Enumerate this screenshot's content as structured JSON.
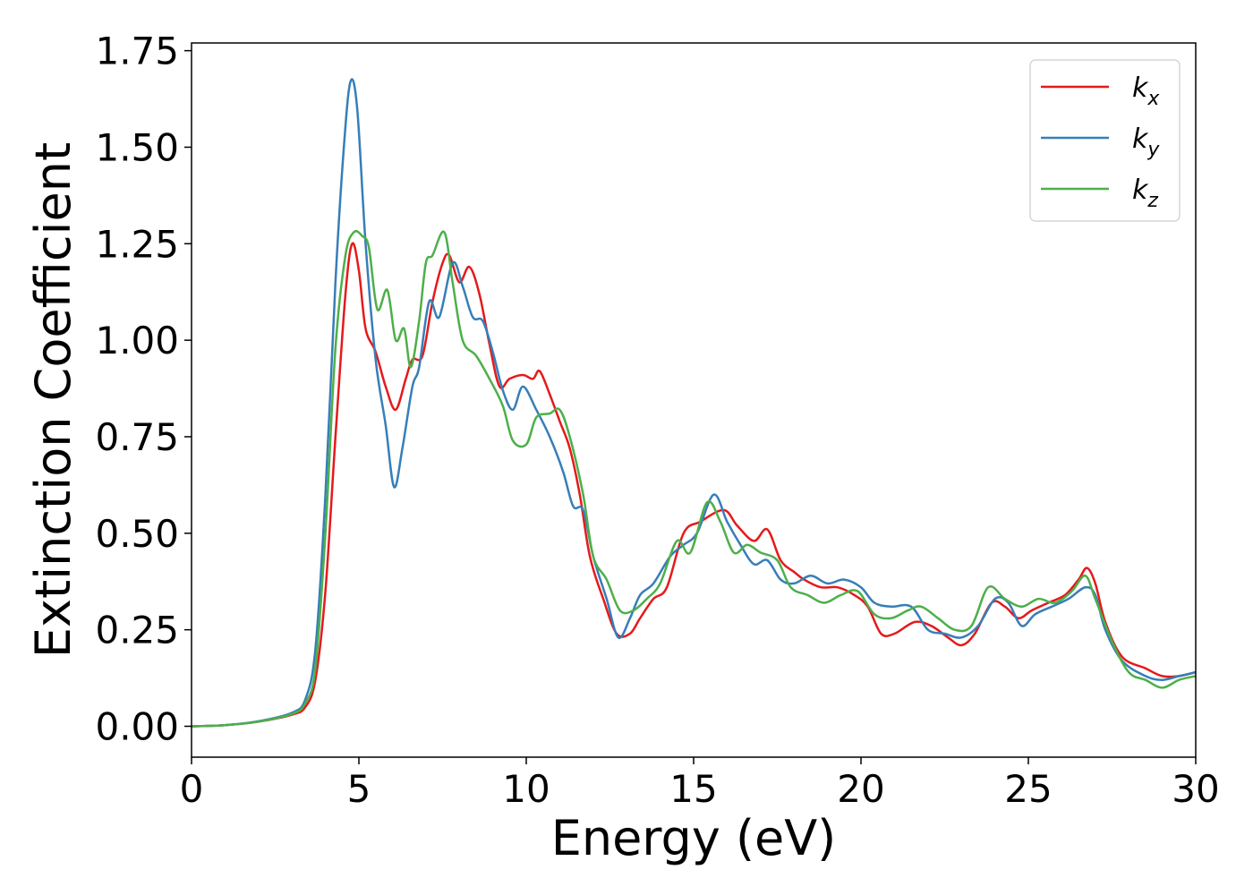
{
  "chart_data": {
    "type": "line",
    "title": "",
    "xlabel": "Energy (eV)",
    "ylabel": "Extinction Coefficient",
    "xlim": [
      0,
      30
    ],
    "ylim": [
      -0.08,
      1.77
    ],
    "xticks": [
      0,
      5,
      10,
      15,
      20,
      25,
      30
    ],
    "xtick_labels": [
      "0",
      "5",
      "10",
      "15",
      "20",
      "25",
      "30"
    ],
    "yticks": [
      0.0,
      0.25,
      0.5,
      0.75,
      1.0,
      1.25,
      1.5,
      1.75
    ],
    "ytick_labels": [
      "0.00",
      "0.25",
      "0.50",
      "0.75",
      "1.00",
      "1.25",
      "1.50",
      "1.75"
    ],
    "grid": false,
    "legend_position": "top-right",
    "series": [
      {
        "name": "k_x",
        "color": "#e41a1c",
        "points": [
          [
            0,
            0
          ],
          [
            1,
            0.003
          ],
          [
            2,
            0.012
          ],
          [
            3,
            0.03
          ],
          [
            3.4,
            0.05
          ],
          [
            3.7,
            0.12
          ],
          [
            4.0,
            0.35
          ],
          [
            4.3,
            0.75
          ],
          [
            4.6,
            1.12
          ],
          [
            4.8,
            1.25
          ],
          [
            5.0,
            1.18
          ],
          [
            5.2,
            1.03
          ],
          [
            5.5,
            0.97
          ],
          [
            5.8,
            0.88
          ],
          [
            6.1,
            0.82
          ],
          [
            6.4,
            0.9
          ],
          [
            6.6,
            0.95
          ],
          [
            6.9,
            0.96
          ],
          [
            7.2,
            1.1
          ],
          [
            7.5,
            1.2
          ],
          [
            7.7,
            1.22
          ],
          [
            8.0,
            1.15
          ],
          [
            8.3,
            1.19
          ],
          [
            8.6,
            1.12
          ],
          [
            8.9,
            0.99
          ],
          [
            9.2,
            0.88
          ],
          [
            9.5,
            0.9
          ],
          [
            9.9,
            0.91
          ],
          [
            10.2,
            0.9
          ],
          [
            10.4,
            0.92
          ],
          [
            10.7,
            0.86
          ],
          [
            11.0,
            0.79
          ],
          [
            11.3,
            0.72
          ],
          [
            11.6,
            0.6
          ],
          [
            11.9,
            0.44
          ],
          [
            12.3,
            0.33
          ],
          [
            12.7,
            0.24
          ],
          [
            13.1,
            0.24
          ],
          [
            13.4,
            0.28
          ],
          [
            13.8,
            0.33
          ],
          [
            14.2,
            0.36
          ],
          [
            14.7,
            0.5
          ],
          [
            15.2,
            0.53
          ],
          [
            15.9,
            0.56
          ],
          [
            16.3,
            0.52
          ],
          [
            16.8,
            0.48
          ],
          [
            17.2,
            0.51
          ],
          [
            17.6,
            0.43
          ],
          [
            18.0,
            0.4
          ],
          [
            18.3,
            0.38
          ],
          [
            18.8,
            0.36
          ],
          [
            19.3,
            0.36
          ],
          [
            19.8,
            0.34
          ],
          [
            20.2,
            0.31
          ],
          [
            20.6,
            0.24
          ],
          [
            21.0,
            0.24
          ],
          [
            21.6,
            0.27
          ],
          [
            22.1,
            0.26
          ],
          [
            22.6,
            0.23
          ],
          [
            23.0,
            0.21
          ],
          [
            23.4,
            0.24
          ],
          [
            23.9,
            0.32
          ],
          [
            24.3,
            0.31
          ],
          [
            24.7,
            0.28
          ],
          [
            25.1,
            0.3
          ],
          [
            25.6,
            0.32
          ],
          [
            26.1,
            0.34
          ],
          [
            26.5,
            0.38
          ],
          [
            26.75,
            0.41
          ],
          [
            27.0,
            0.37
          ],
          [
            27.3,
            0.27
          ],
          [
            27.8,
            0.18
          ],
          [
            28.5,
            0.15
          ],
          [
            29.0,
            0.13
          ],
          [
            29.5,
            0.13
          ],
          [
            30,
            0.14
          ]
        ]
      },
      {
        "name": "k_y",
        "color": "#377eb8",
        "points": [
          [
            0,
            0
          ],
          [
            1,
            0.003
          ],
          [
            2,
            0.013
          ],
          [
            3,
            0.035
          ],
          [
            3.4,
            0.07
          ],
          [
            3.7,
            0.2
          ],
          [
            4.0,
            0.6
          ],
          [
            4.3,
            1.15
          ],
          [
            4.55,
            1.5
          ],
          [
            4.75,
            1.67
          ],
          [
            4.95,
            1.6
          ],
          [
            5.2,
            1.25
          ],
          [
            5.5,
            0.95
          ],
          [
            5.8,
            0.78
          ],
          [
            6.05,
            0.62
          ],
          [
            6.3,
            0.72
          ],
          [
            6.6,
            0.88
          ],
          [
            6.8,
            0.93
          ],
          [
            7.1,
            1.1
          ],
          [
            7.4,
            1.06
          ],
          [
            7.8,
            1.2
          ],
          [
            8.1,
            1.14
          ],
          [
            8.4,
            1.06
          ],
          [
            8.7,
            1.05
          ],
          [
            9.0,
            0.97
          ],
          [
            9.3,
            0.87
          ],
          [
            9.6,
            0.82
          ],
          [
            9.9,
            0.88
          ],
          [
            10.3,
            0.82
          ],
          [
            10.7,
            0.75
          ],
          [
            11.1,
            0.66
          ],
          [
            11.4,
            0.57
          ],
          [
            11.7,
            0.56
          ],
          [
            12.0,
            0.44
          ],
          [
            12.4,
            0.33
          ],
          [
            12.75,
            0.23
          ],
          [
            13.1,
            0.28
          ],
          [
            13.4,
            0.34
          ],
          [
            13.8,
            0.37
          ],
          [
            14.3,
            0.44
          ],
          [
            14.7,
            0.47
          ],
          [
            15.1,
            0.5
          ],
          [
            15.6,
            0.6
          ],
          [
            16.0,
            0.53
          ],
          [
            16.4,
            0.47
          ],
          [
            16.8,
            0.42
          ],
          [
            17.2,
            0.43
          ],
          [
            17.6,
            0.38
          ],
          [
            18.0,
            0.37
          ],
          [
            18.5,
            0.39
          ],
          [
            19.0,
            0.37
          ],
          [
            19.5,
            0.38
          ],
          [
            20.0,
            0.36
          ],
          [
            20.4,
            0.32
          ],
          [
            20.9,
            0.31
          ],
          [
            21.5,
            0.31
          ],
          [
            22.0,
            0.25
          ],
          [
            22.5,
            0.24
          ],
          [
            23.0,
            0.23
          ],
          [
            23.5,
            0.26
          ],
          [
            24.0,
            0.33
          ],
          [
            24.4,
            0.32
          ],
          [
            24.8,
            0.26
          ],
          [
            25.2,
            0.29
          ],
          [
            25.7,
            0.31
          ],
          [
            26.2,
            0.33
          ],
          [
            26.7,
            0.36
          ],
          [
            27.0,
            0.34
          ],
          [
            27.3,
            0.25
          ],
          [
            27.8,
            0.17
          ],
          [
            28.5,
            0.13
          ],
          [
            29.0,
            0.12
          ],
          [
            29.5,
            0.13
          ],
          [
            30,
            0.14
          ]
        ]
      },
      {
        "name": "k_z",
        "color": "#4daf4a",
        "points": [
          [
            0,
            0
          ],
          [
            1,
            0.003
          ],
          [
            2,
            0.012
          ],
          [
            3,
            0.032
          ],
          [
            3.4,
            0.06
          ],
          [
            3.7,
            0.15
          ],
          [
            4.0,
            0.5
          ],
          [
            4.3,
            0.98
          ],
          [
            4.6,
            1.22
          ],
          [
            4.85,
            1.28
          ],
          [
            5.1,
            1.27
          ],
          [
            5.3,
            1.24
          ],
          [
            5.55,
            1.08
          ],
          [
            5.85,
            1.13
          ],
          [
            6.1,
            1.0
          ],
          [
            6.35,
            1.03
          ],
          [
            6.55,
            0.93
          ],
          [
            6.8,
            1.05
          ],
          [
            7.0,
            1.2
          ],
          [
            7.2,
            1.22
          ],
          [
            7.55,
            1.28
          ],
          [
            7.8,
            1.15
          ],
          [
            8.1,
            1.0
          ],
          [
            8.5,
            0.96
          ],
          [
            8.9,
            0.9
          ],
          [
            9.3,
            0.83
          ],
          [
            9.6,
            0.74
          ],
          [
            10.0,
            0.73
          ],
          [
            10.3,
            0.8
          ],
          [
            10.7,
            0.81
          ],
          [
            11.0,
            0.82
          ],
          [
            11.3,
            0.75
          ],
          [
            11.7,
            0.6
          ],
          [
            12.0,
            0.44
          ],
          [
            12.4,
            0.38
          ],
          [
            12.8,
            0.3
          ],
          [
            13.2,
            0.3
          ],
          [
            13.6,
            0.33
          ],
          [
            14.0,
            0.37
          ],
          [
            14.5,
            0.48
          ],
          [
            14.9,
            0.45
          ],
          [
            15.4,
            0.58
          ],
          [
            15.8,
            0.53
          ],
          [
            16.2,
            0.45
          ],
          [
            16.6,
            0.47
          ],
          [
            17.0,
            0.45
          ],
          [
            17.5,
            0.43
          ],
          [
            17.9,
            0.36
          ],
          [
            18.4,
            0.34
          ],
          [
            18.9,
            0.32
          ],
          [
            19.4,
            0.34
          ],
          [
            19.9,
            0.35
          ],
          [
            20.4,
            0.29
          ],
          [
            20.9,
            0.28
          ],
          [
            21.4,
            0.3
          ],
          [
            21.8,
            0.31
          ],
          [
            22.3,
            0.28
          ],
          [
            22.8,
            0.25
          ],
          [
            23.3,
            0.26
          ],
          [
            23.8,
            0.36
          ],
          [
            24.3,
            0.33
          ],
          [
            24.8,
            0.31
          ],
          [
            25.3,
            0.33
          ],
          [
            25.8,
            0.32
          ],
          [
            26.3,
            0.35
          ],
          [
            26.7,
            0.39
          ],
          [
            27.0,
            0.33
          ],
          [
            27.5,
            0.22
          ],
          [
            28.0,
            0.14
          ],
          [
            28.5,
            0.12
          ],
          [
            29.0,
            0.1
          ],
          [
            29.5,
            0.12
          ],
          [
            30,
            0.13
          ]
        ]
      }
    ]
  }
}
